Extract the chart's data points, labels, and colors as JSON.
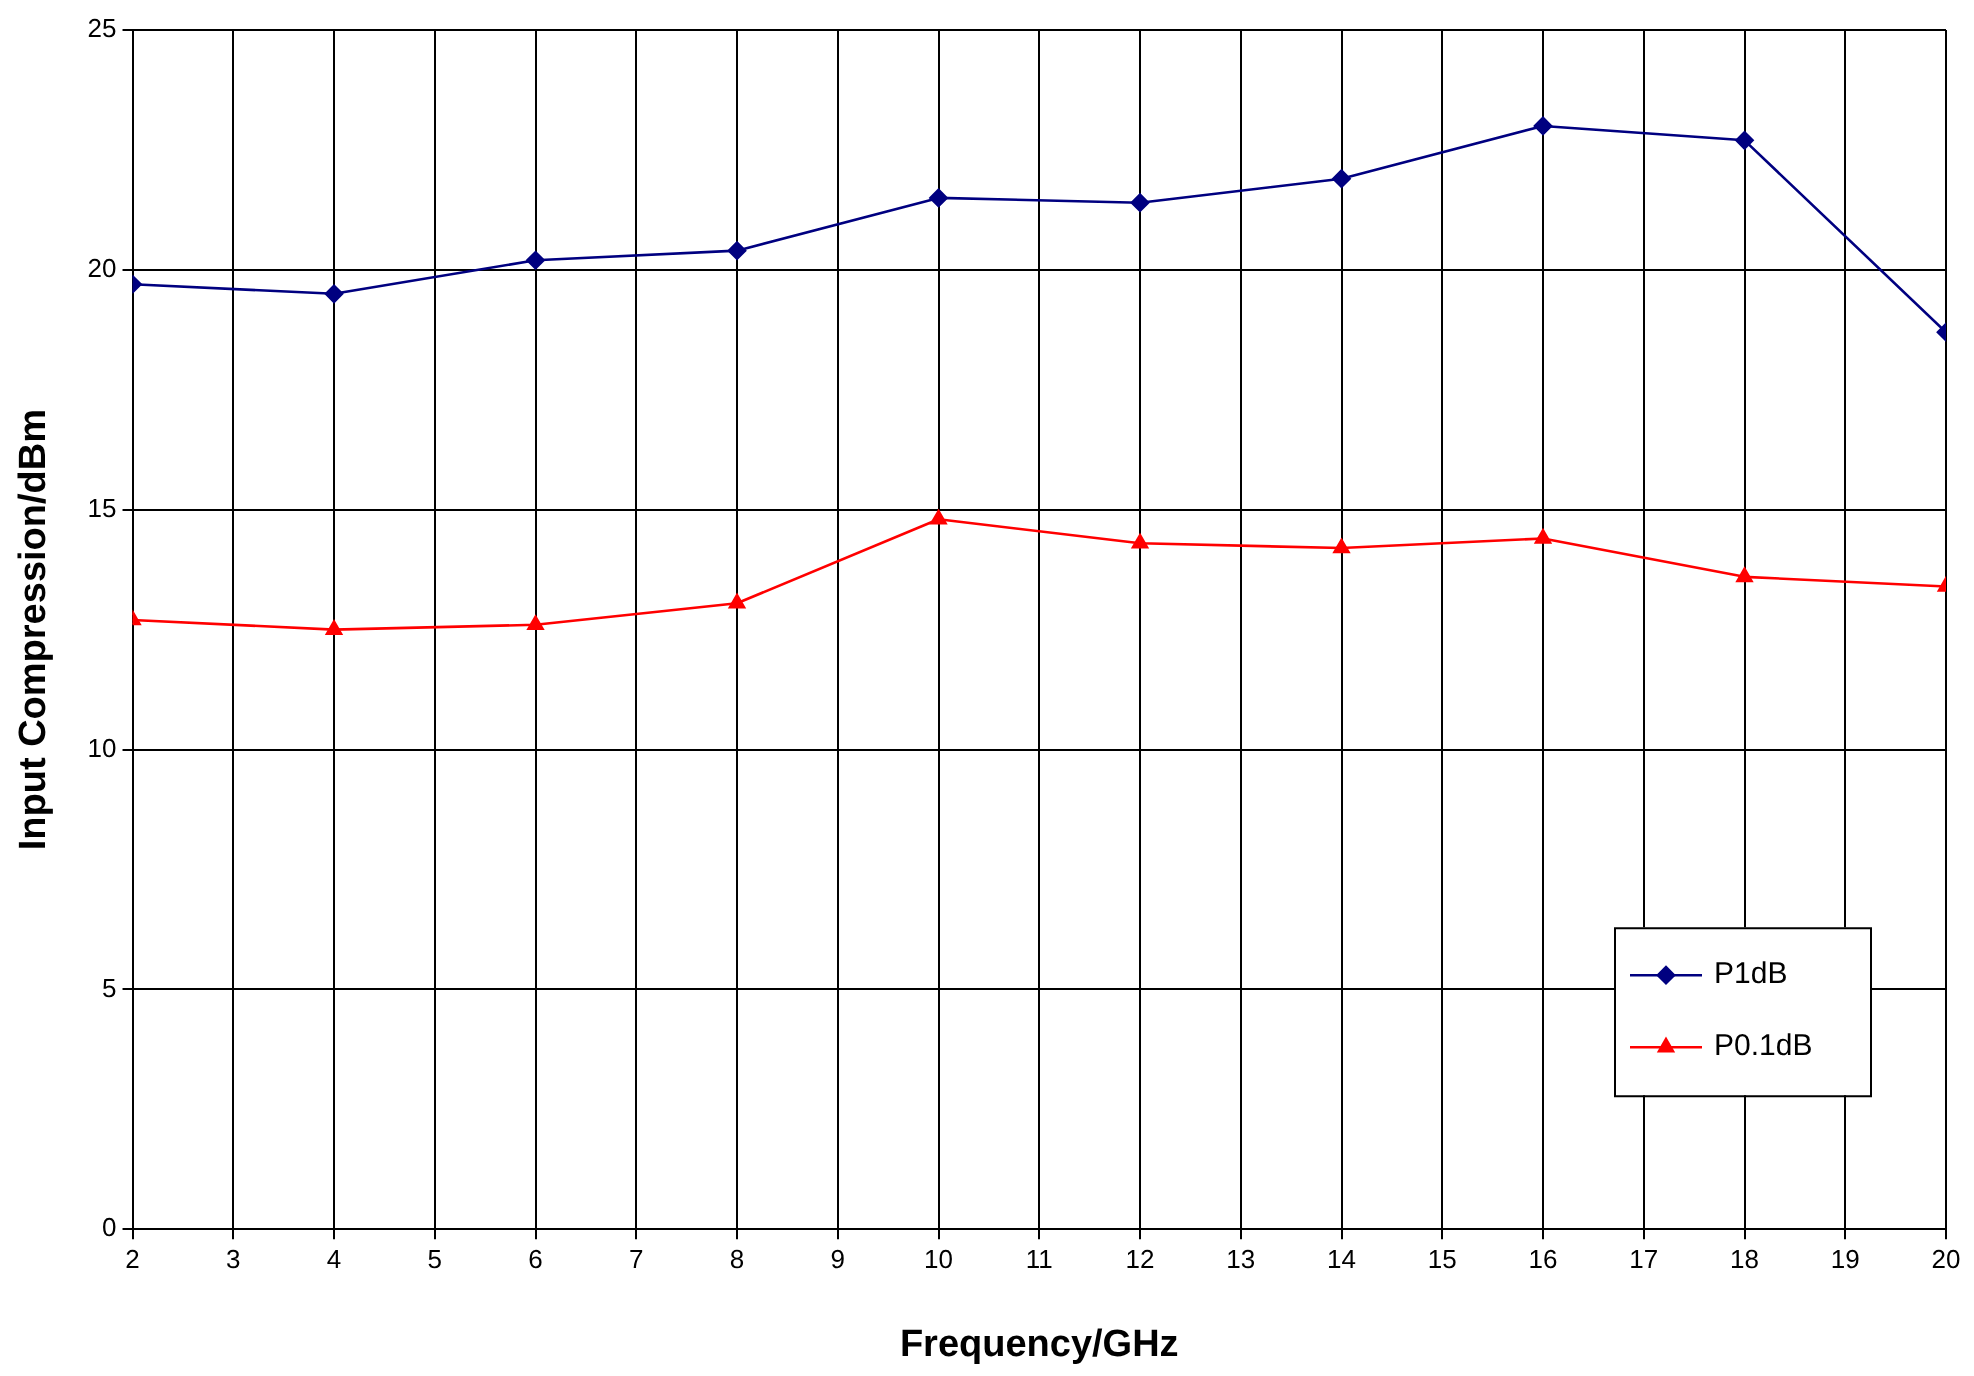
{
  "chart_data": {
    "type": "line",
    "xlabel": "Frequency/GHz",
    "ylabel": "Input Compression/dBm",
    "x": [
      2,
      4,
      6,
      8,
      10,
      12,
      14,
      16,
      18,
      20
    ],
    "xlim": [
      2,
      20
    ],
    "xticks": [
      2,
      3,
      4,
      5,
      6,
      7,
      8,
      9,
      10,
      11,
      12,
      13,
      14,
      15,
      16,
      17,
      18,
      19,
      20
    ],
    "ylim": [
      0,
      25
    ],
    "yticks": [
      0,
      5,
      10,
      15,
      20,
      25
    ],
    "grid": true,
    "legend": "bottom right",
    "line_style": "solid",
    "series": [
      {
        "name": "P1dB",
        "color": "#000080",
        "marker": "diamond",
        "values": [
          19.7,
          19.5,
          20.2,
          20.4,
          21.5,
          21.4,
          21.9,
          23.0,
          22.7,
          18.7
        ]
      },
      {
        "name": "P0.1dB",
        "color": "#ff0000",
        "marker": "triangle",
        "values": [
          12.7,
          12.5,
          12.6,
          13.05,
          14.8,
          14.3,
          14.2,
          14.4,
          13.6,
          13.4
        ]
      }
    ]
  }
}
